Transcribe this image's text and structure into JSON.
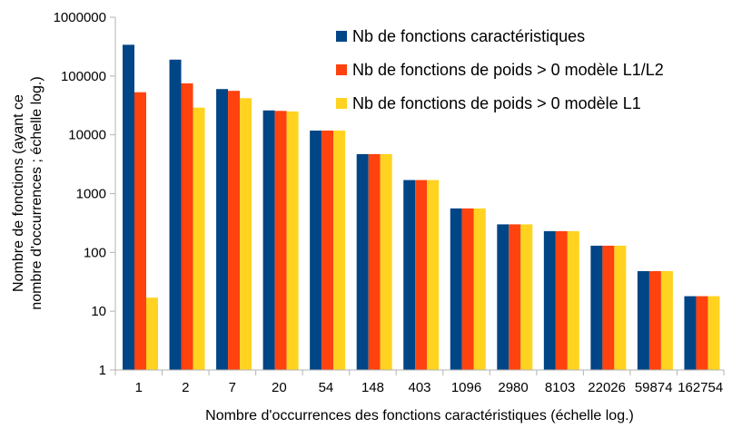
{
  "chart_data": {
    "type": "bar",
    "scale_y": "log",
    "ylim": [
      1,
      1000000
    ],
    "y_ticks": [
      "1",
      "10",
      "100",
      "1000",
      "10000",
      "100000",
      "1000000"
    ],
    "categories": [
      "1",
      "2",
      "7",
      "20",
      "54",
      "148",
      "403",
      "1096",
      "2980",
      "8103",
      "22026",
      "59874",
      "162754"
    ],
    "series": [
      {
        "name": "Nb de fonctions caractéristiques",
        "color": "#004586",
        "values": [
          340000,
          190000,
          60000,
          26000,
          11800,
          4700,
          1700,
          560,
          300,
          230,
          130,
          48,
          18
        ]
      },
      {
        "name": "Nb de fonctions de poids > 0 modèle L1/L2",
        "color": "#ff420e",
        "values": [
          53000,
          75000,
          56000,
          25500,
          11800,
          4700,
          1700,
          560,
          300,
          230,
          130,
          48,
          18
        ]
      },
      {
        "name": "Nb de fonctions de poids > 0 modèle L1",
        "color": "#ffd320",
        "values": [
          17,
          29000,
          42000,
          25000,
          11800,
          4700,
          1700,
          560,
          300,
          230,
          130,
          48,
          18
        ]
      }
    ],
    "xlabel": "Nombre d'occurrences des fonctions caractéristiques (échelle log.)",
    "ylabel_lines": [
      "Nombre de fonctions (ayant ce",
      "nombre d'occurrences ; échelle log.)"
    ],
    "legend_position": "top-right",
    "grid": false
  }
}
